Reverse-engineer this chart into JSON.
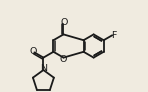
{
  "bg_color": "#f0ebe0",
  "bond_color": "#1a1a1a",
  "bond_lw": 1.3,
  "font_size": 6.8,
  "scale": 0.13,
  "xlim": [
    -0.15,
    1.05
  ],
  "ylim": [
    0.0,
    1.0
  ]
}
